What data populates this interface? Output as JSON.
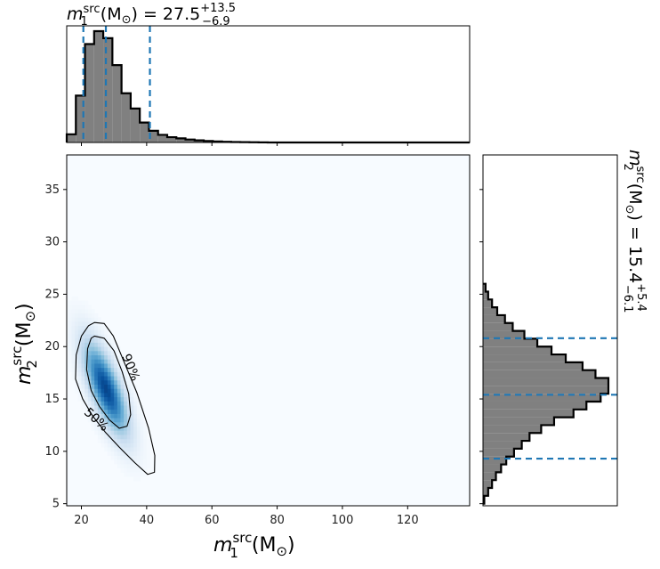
{
  "chart_data": [
    {
      "type": "histogram",
      "panel": "top-marginal",
      "title_symbol": "m",
      "title_sup": "src",
      "title_sub": "1",
      "title_unit": "(M",
      "title_unit_sub": "⊙",
      "title_unit_close": ")",
      "title_eq": " = 27.5",
      "title_plus": "+13.5",
      "title_minus": "−6.9",
      "bin_edges": [
        15.5,
        18.3,
        21.1,
        23.9,
        26.7,
        29.5,
        32.3,
        35.1,
        37.9,
        40.7,
        43.5,
        46.3,
        49.1,
        51.9,
        54.7,
        57.5,
        60.3,
        63.1,
        65.9,
        68.7,
        71.5,
        74.3,
        77.1
      ],
      "counts": [
        0.07,
        0.4,
        0.84,
        0.95,
        0.89,
        0.66,
        0.42,
        0.29,
        0.17,
        0.1,
        0.065,
        0.045,
        0.035,
        0.025,
        0.018,
        0.013,
        0.009,
        0.006,
        0.004,
        0.003,
        0.002,
        0.001
      ],
      "quantile_lines": [
        20.6,
        27.5,
        41.0
      ],
      "xlim": [
        15.5,
        139.0
      ],
      "fill_color": "#808080",
      "line_color": "#1f77b4"
    },
    {
      "type": "heatmap",
      "panel": "joint",
      "xlabel_symbol": "m",
      "xlabel_sup": "src",
      "xlabel_sub": "1",
      "ylabel_symbol": "m",
      "ylabel_sup": "src",
      "ylabel_sub": "2",
      "unit_open": "(M",
      "unit_sub": "⊙",
      "unit_close": ")",
      "xlim": [
        15.5,
        139.0
      ],
      "ylim": [
        4.8,
        38.3
      ],
      "xticks": [
        20,
        40,
        60,
        80,
        100,
        120
      ],
      "xtick_labels": [
        "20",
        "40",
        "60",
        "80",
        "100",
        "120"
      ],
      "yticks": [
        5,
        10,
        15,
        20,
        25,
        30,
        35
      ],
      "ytick_labels": [
        "5",
        "10",
        "15",
        "20",
        "25",
        "30",
        "35"
      ],
      "peak": [
        27.5,
        16.0
      ],
      "colormap": "Blues",
      "contours": [
        {
          "label": "50%",
          "points": [
            [
              24.0,
              21.0
            ],
            [
              27.0,
              20.8
            ],
            [
              30.0,
              19.6
            ],
            [
              32.5,
              17.6
            ],
            [
              34.5,
              15.5
            ],
            [
              35.1,
              13.5
            ],
            [
              34.0,
              12.4
            ],
            [
              31.6,
              12.2
            ],
            [
              28.6,
              13.0
            ],
            [
              25.5,
              14.3
            ],
            [
              23.0,
              15.8
            ],
            [
              21.6,
              17.8
            ],
            [
              21.9,
              19.8
            ],
            [
              23.0,
              20.8
            ]
          ]
        },
        {
          "label": "90%",
          "points": [
            [
              24.0,
              22.3
            ],
            [
              27.0,
              22.2
            ],
            [
              29.8,
              21.0
            ],
            [
              33.0,
              18.6
            ],
            [
              37.0,
              15.6
            ],
            [
              40.6,
              12.2
            ],
            [
              42.5,
              9.6
            ],
            [
              42.4,
              8.0
            ],
            [
              40.3,
              7.8
            ],
            [
              36.4,
              8.9
            ],
            [
              31.6,
              10.4
            ],
            [
              27.4,
              11.8
            ],
            [
              23.4,
              13.4
            ],
            [
              20.4,
              15.0
            ],
            [
              18.2,
              16.9
            ],
            [
              18.4,
              19.2
            ],
            [
              20.0,
              21.0
            ],
            [
              22.2,
              22.0
            ]
          ]
        }
      ],
      "contour_labels": [
        {
          "text": "90%",
          "x": 35.0,
          "y": 18.0,
          "rotation": 68
        },
        {
          "text": "50%",
          "x": 24.5,
          "y": 13.0,
          "rotation": 42
        }
      ]
    },
    {
      "type": "histogram",
      "panel": "right-marginal",
      "orientation": "horizontal",
      "title_symbol": "m",
      "title_sup": "src",
      "title_sub": "2",
      "title_unit": "(M",
      "title_unit_sub": "⊙",
      "title_unit_close": ")",
      "title_eq": " = 15.4",
      "title_plus": "+5.4",
      "title_minus": "−6.1",
      "bin_edges": [
        5.0,
        5.75,
        6.5,
        7.25,
        8.0,
        8.75,
        9.5,
        10.25,
        11.0,
        11.75,
        12.5,
        13.25,
        14.0,
        14.75,
        15.5,
        16.25,
        17.0,
        17.75,
        18.5,
        19.25,
        20.0,
        20.75,
        21.5,
        22.25,
        23.0,
        23.75,
        24.5,
        25.25,
        26.0
      ],
      "counts": [
        0.01,
        0.04,
        0.07,
        0.1,
        0.14,
        0.18,
        0.24,
        0.3,
        0.36,
        0.45,
        0.55,
        0.7,
        0.8,
        0.91,
        0.97,
        0.97,
        0.87,
        0.77,
        0.64,
        0.53,
        0.42,
        0.32,
        0.23,
        0.17,
        0.11,
        0.07,
        0.04,
        0.02
      ],
      "quantile_lines": [
        9.3,
        15.4,
        20.8
      ],
      "ylim": [
        4.8,
        38.3
      ],
      "fill_color": "#808080",
      "line_color": "#1f77b4"
    }
  ]
}
